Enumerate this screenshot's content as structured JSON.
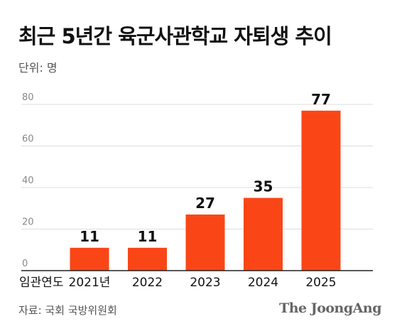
{
  "header": {
    "title": "최근 5년간 육군사관학교 자퇴생 추이",
    "unit": "단위: 명"
  },
  "footer": {
    "source": "자료: 국회 국방위원회",
    "brand": "The JoongAng"
  },
  "chart_data": {
    "type": "bar",
    "title": "최근 5년간 육군사관학교 자퇴생 추이",
    "xlabel": "임관연도",
    "ylabel": "",
    "categories": [
      "2021년",
      "2022",
      "2023",
      "2024",
      "2025"
    ],
    "values": [
      11,
      11,
      27,
      35,
      77
    ],
    "ylim": [
      0,
      80
    ],
    "yticks": [
      0,
      20,
      40,
      60,
      80
    ],
    "grid": true,
    "colors": {
      "bar": "#fa4616",
      "grid": "#dddddd",
      "axis": "#222222"
    }
  }
}
